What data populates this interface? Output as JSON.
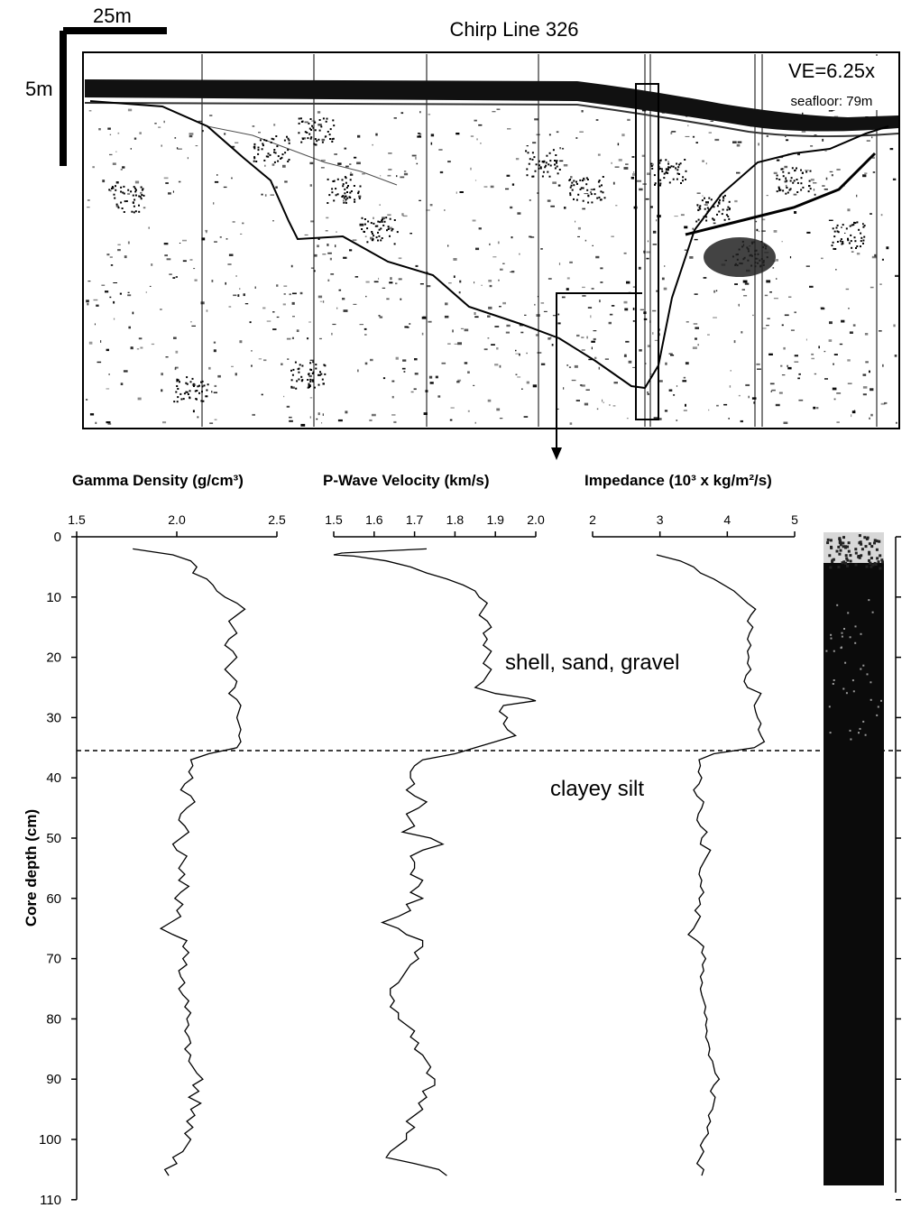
{
  "seismic": {
    "title": "Chirp Line 326",
    "scale_horizontal": "25m",
    "scale_vertical": "5m",
    "ve_label": "VE=6.25x",
    "seafloor_label": "seafloor: 79m"
  },
  "chart_data": [
    {
      "type": "line",
      "title": "Gamma Density (g/cm³)",
      "xlabel": "Gamma Density (g/cm³)",
      "ylabel": "Core depth (cm)",
      "xlim": [
        1.5,
        2.5
      ],
      "xticks": [
        "1.5",
        "2.0",
        "2.5"
      ],
      "ylim": [
        0,
        110
      ],
      "yticks": [
        "0",
        "10",
        "20",
        "30",
        "40",
        "50",
        "60",
        "70",
        "80",
        "90",
        "100",
        "110"
      ],
      "series": [
        {
          "depth": [
            2,
            3,
            4,
            5,
            6,
            7,
            8,
            9,
            10,
            11,
            12,
            13,
            14,
            15,
            16,
            17,
            18,
            19,
            20,
            21,
            22,
            23,
            24,
            25,
            26,
            27,
            28,
            29,
            30,
            31,
            32,
            33,
            34,
            35,
            36,
            37,
            38,
            39,
            40,
            41,
            42,
            43,
            44,
            45,
            46,
            47,
            48,
            49,
            50,
            51,
            52,
            53,
            54,
            55,
            56,
            57,
            58,
            59,
            60,
            61,
            62,
            63,
            64,
            65,
            66,
            67,
            68,
            69,
            70,
            71,
            72,
            73,
            74,
            75,
            76,
            77,
            78,
            79,
            80,
            81,
            82,
            83,
            84,
            85,
            86,
            87,
            88,
            89,
            90,
            91,
            92,
            93,
            94,
            95,
            96,
            97,
            98,
            99,
            100,
            101,
            102,
            103,
            104,
            105,
            106
          ],
          "values": [
            1.78,
            1.98,
            2.07,
            2.1,
            2.08,
            2.15,
            2.18,
            2.2,
            2.24,
            2.3,
            2.34,
            2.3,
            2.26,
            2.28,
            2.3,
            2.26,
            2.24,
            2.28,
            2.3,
            2.27,
            2.24,
            2.27,
            2.3,
            2.29,
            2.26,
            2.3,
            2.32,
            2.31,
            2.3,
            2.31,
            2.32,
            2.31,
            2.32,
            2.3,
            2.16,
            2.07,
            2.08,
            2.06,
            2.08,
            2.04,
            2.02,
            2.07,
            2.09,
            2.05,
            2.02,
            2.01,
            2.04,
            2.06,
            2.02,
            1.98,
            2.0,
            2.05,
            2.03,
            2.01,
            2.04,
            2.01,
            2.06,
            2.02,
            1.99,
            2.03,
            2.0,
            2.02,
            1.97,
            1.92,
            1.98,
            2.05,
            2.03,
            2.06,
            2.03,
            2.05,
            2.01,
            2.02,
            2.04,
            2.01,
            2.03,
            2.06,
            2.04,
            2.07,
            2.05,
            2.06,
            2.04,
            2.06,
            2.07,
            2.04,
            2.07,
            2.06,
            2.08,
            2.1,
            2.13,
            2.08,
            2.11,
            2.06,
            2.12,
            2.07,
            2.09,
            2.05,
            2.08,
            2.04,
            2.07,
            2.05,
            2.03,
            1.98,
            2.0,
            1.94,
            1.96
          ]
        }
      ]
    },
    {
      "type": "line",
      "title": "P-Wave Velocity (km/s)",
      "xlabel": "P-Wave Velocity (km/s)",
      "ylabel": "Core depth (cm)",
      "xlim": [
        1.5,
        2.0
      ],
      "xticks": [
        "1.5",
        "1.6",
        "1.7",
        "1.8",
        "1.9",
        "2.0"
      ],
      "ylim": [
        0,
        110
      ],
      "series": [
        {
          "depth": [
            2,
            2.7,
            3,
            3.2,
            4,
            5,
            6,
            7,
            8,
            9,
            10,
            11,
            12,
            13,
            14,
            15,
            16,
            17,
            18,
            19,
            20,
            21,
            22,
            23,
            24,
            25,
            26,
            26.8,
            27.2,
            28,
            29,
            30,
            31,
            32,
            33,
            34,
            35,
            36,
            37,
            38,
            39,
            40,
            41,
            42,
            43,
            44,
            45,
            46,
            47,
            48,
            49,
            50,
            51,
            52,
            53,
            54,
            55,
            56,
            57,
            58,
            59,
            60,
            61,
            62,
            63,
            64,
            65,
            66,
            67,
            68,
            69,
            70,
            71,
            72,
            73,
            74,
            75,
            76,
            77,
            78,
            79,
            80,
            81,
            82,
            83,
            84,
            85,
            86,
            87,
            88,
            89,
            90,
            91,
            92,
            93,
            94,
            95,
            96,
            97,
            98,
            99,
            100,
            101,
            102,
            103,
            104,
            105,
            106
          ],
          "values": [
            1.73,
            1.52,
            1.5,
            1.55,
            1.63,
            1.69,
            1.73,
            1.78,
            1.82,
            1.85,
            1.86,
            1.88,
            1.87,
            1.86,
            1.88,
            1.89,
            1.87,
            1.88,
            1.87,
            1.89,
            1.88,
            1.87,
            1.89,
            1.88,
            1.87,
            1.85,
            1.9,
            1.98,
            2.0,
            1.92,
            1.91,
            1.93,
            1.92,
            1.93,
            1.95,
            1.9,
            1.85,
            1.8,
            1.72,
            1.7,
            1.69,
            1.69,
            1.7,
            1.68,
            1.7,
            1.73,
            1.71,
            1.68,
            1.69,
            1.7,
            1.67,
            1.74,
            1.77,
            1.72,
            1.69,
            1.7,
            1.7,
            1.69,
            1.72,
            1.71,
            1.69,
            1.72,
            1.68,
            1.69,
            1.66,
            1.62,
            1.66,
            1.68,
            1.72,
            1.72,
            1.7,
            1.71,
            1.69,
            1.68,
            1.67,
            1.66,
            1.64,
            1.64,
            1.65,
            1.64,
            1.66,
            1.66,
            1.68,
            1.7,
            1.69,
            1.71,
            1.7,
            1.72,
            1.73,
            1.74,
            1.73,
            1.75,
            1.75,
            1.72,
            1.73,
            1.71,
            1.72,
            1.7,
            1.68,
            1.7,
            1.68,
            1.68,
            1.66,
            1.64,
            1.63,
            1.7,
            1.76,
            1.78
          ]
        }
      ]
    },
    {
      "type": "line",
      "title": "Impedance (10³ x kg/m²/s)",
      "xlabel": "Impedance (10³ x kg/m²/s)",
      "ylabel": "Core depth (cm)",
      "xlim": [
        2,
        5
      ],
      "xticks": [
        "2",
        "3",
        "4",
        "5"
      ],
      "ylim": [
        0,
        110
      ],
      "series": [
        {
          "depth": [
            3,
            4,
            5,
            6,
            7,
            8,
            9,
            10,
            11,
            12,
            13,
            14,
            15,
            16,
            17,
            18,
            19,
            20,
            21,
            22,
            23,
            24,
            25,
            26,
            27,
            28,
            29,
            30,
            31,
            32,
            33,
            34,
            35,
            36,
            37,
            38,
            39,
            40,
            41,
            42,
            43,
            44,
            45,
            46,
            47,
            48,
            49,
            50,
            51,
            52,
            53,
            54,
            55,
            56,
            57,
            58,
            59,
            60,
            61,
            62,
            63,
            64,
            65,
            66,
            67,
            68,
            69,
            70,
            71,
            72,
            73,
            74,
            75,
            76,
            77,
            78,
            79,
            80,
            81,
            82,
            83,
            84,
            85,
            86,
            87,
            88,
            89,
            90,
            91,
            92,
            93,
            94,
            95,
            96,
            97,
            98,
            99,
            100,
            101,
            102,
            103,
            104,
            105,
            106
          ],
          "values": [
            2.95,
            3.3,
            3.5,
            3.6,
            3.8,
            3.95,
            4.1,
            4.2,
            4.3,
            4.42,
            4.35,
            4.3,
            4.38,
            4.33,
            4.3,
            4.35,
            4.3,
            4.32,
            4.3,
            4.35,
            4.28,
            4.25,
            4.3,
            4.5,
            4.45,
            4.4,
            4.42,
            4.45,
            4.5,
            4.46,
            4.5,
            4.55,
            4.4,
            3.8,
            3.58,
            3.6,
            3.57,
            3.62,
            3.58,
            3.5,
            3.55,
            3.65,
            3.62,
            3.57,
            3.55,
            3.6,
            3.7,
            3.62,
            3.6,
            3.75,
            3.7,
            3.65,
            3.6,
            3.58,
            3.62,
            3.6,
            3.65,
            3.58,
            3.6,
            3.52,
            3.6,
            3.55,
            3.5,
            3.42,
            3.55,
            3.65,
            3.62,
            3.68,
            3.63,
            3.65,
            3.6,
            3.63,
            3.6,
            3.62,
            3.65,
            3.68,
            3.66,
            3.7,
            3.68,
            3.7,
            3.68,
            3.72,
            3.74,
            3.72,
            3.78,
            3.8,
            3.82,
            3.88,
            3.8,
            3.75,
            3.82,
            3.8,
            3.78,
            3.72,
            3.75,
            3.7,
            3.72,
            3.65,
            3.6,
            3.65,
            3.6,
            3.55,
            3.65,
            3.62
          ]
        }
      ]
    }
  ],
  "annotations": {
    "upper_unit": "shell, sand, gravel",
    "lower_unit": "clayey silt",
    "boundary_depth": 36
  }
}
